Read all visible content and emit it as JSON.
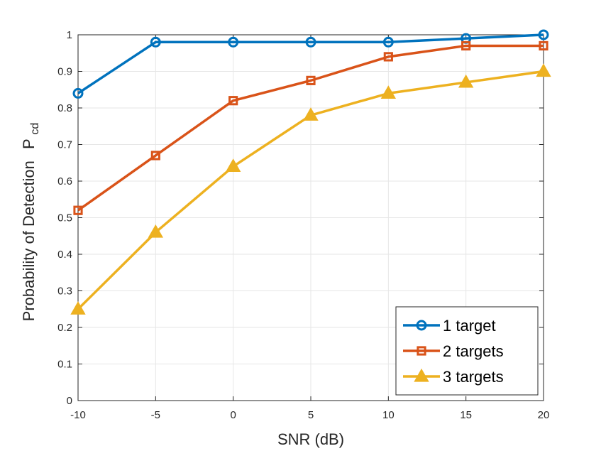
{
  "chart_data": {
    "type": "line",
    "x": [
      -10,
      -5,
      0,
      5,
      10,
      15,
      20
    ],
    "xlim": [
      -10,
      20
    ],
    "ylim": [
      0,
      1
    ],
    "xticks": [
      "-10",
      "-5",
      "0",
      "5",
      "10",
      "15",
      "20"
    ],
    "yticks": [
      "0",
      "0.1",
      "0.2",
      "0.3",
      "0.4",
      "0.5",
      "0.6",
      "0.7",
      "0.8",
      "0.9",
      "1"
    ],
    "xlabel": "SNR (dB)",
    "ylabel": "Probability of Detection",
    "ylabel_symbol": "P",
    "ylabel_subscript": "cd",
    "grid": true,
    "legend_position": "bottom-right",
    "series": [
      {
        "name": "1 target",
        "color": "#0072BD",
        "marker": "circle",
        "values": [
          0.84,
          0.98,
          0.98,
          0.98,
          0.98,
          0.99,
          1.0
        ]
      },
      {
        "name": "2 targets",
        "color": "#D95319",
        "marker": "square",
        "values": [
          0.52,
          0.67,
          0.82,
          0.875,
          0.94,
          0.97,
          0.97
        ]
      },
      {
        "name": "3 targets",
        "color": "#EDB120",
        "marker": "triangle",
        "values": [
          0.25,
          0.46,
          0.64,
          0.78,
          0.84,
          0.87,
          0.9
        ]
      }
    ]
  }
}
